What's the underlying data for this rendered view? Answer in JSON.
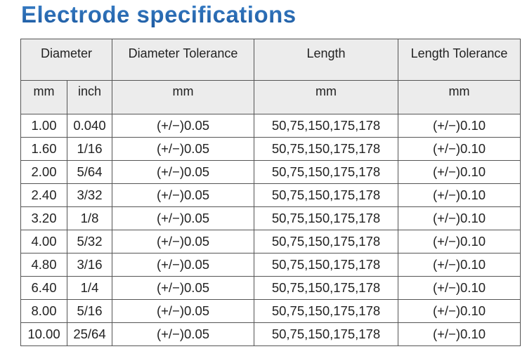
{
  "title": "Electrode specifications",
  "headers": {
    "row1": [
      "Diameter",
      "Diameter Tolerance",
      "Length",
      "Length Tolerance"
    ],
    "row2": [
      "mm",
      "inch",
      "mm",
      "mm",
      "mm"
    ]
  },
  "rows": [
    [
      "1.00",
      "0.040",
      "(+/−)0.05",
      "50,75,150,175,178",
      "(+/−)0.10"
    ],
    [
      "1.60",
      "1/16",
      "(+/−)0.05",
      "50,75,150,175,178",
      "(+/−)0.10"
    ],
    [
      "2.00",
      "5/64",
      "(+/−)0.05",
      "50,75,150,175,178",
      "(+/−)0.10"
    ],
    [
      "2.40",
      "3/32",
      "(+/−)0.05",
      "50,75,150,175,178",
      "(+/−)0.10"
    ],
    [
      "3.20",
      "1/8",
      "(+/−)0.05",
      "50,75,150,175,178",
      "(+/−)0.10"
    ],
    [
      "4.00",
      "5/32",
      "(+/−)0.05",
      "50,75,150,175,178",
      "(+/−)0.10"
    ],
    [
      "4.80",
      "3/16",
      "(+/−)0.05",
      "50,75,150,175,178",
      "(+/−)0.10"
    ],
    [
      "6.40",
      "1/4",
      "(+/−)0.05",
      "50,75,150,175,178",
      "(+/−)0.10"
    ],
    [
      "8.00",
      "5/16",
      "(+/−)0.05",
      "50,75,150,175,178",
      "(+/−)0.10"
    ],
    [
      "10.00",
      "25/64",
      "(+/−)0.05",
      "50,75,150,175,178",
      "(+/−)0.10"
    ]
  ]
}
